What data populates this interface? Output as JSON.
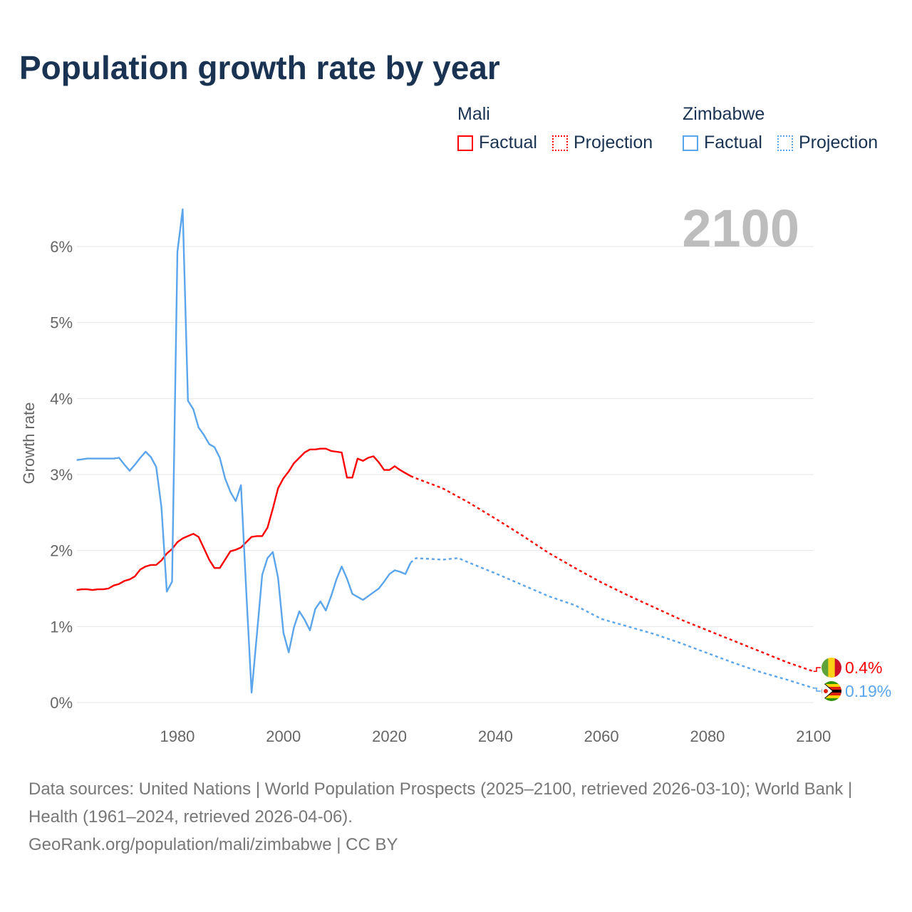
{
  "title": "Population growth rate by year",
  "legend": {
    "groups": [
      {
        "name": "Mali",
        "factual": "Factual",
        "projection": "Projection",
        "color": "#ff0000"
      },
      {
        "name": "Zimbabwe",
        "factual": "Factual",
        "projection": "Projection",
        "color": "#5aa5ec"
      }
    ]
  },
  "current_year": "2100",
  "source": {
    "line1": "Data sources: United Nations | World Population Prospects (2025–2100, retrieved 2026-03-10); World Bank | Health (1961–2024, retrieved 2026-04-06).",
    "line2": "GeoRank.org/population/mali/zimbabwe | CC BY"
  },
  "chart_data": {
    "type": "line",
    "title": "Population growth rate by year",
    "xlabel": "",
    "ylabel": "Growth rate",
    "xlim": [
      1961,
      2100
    ],
    "ylim": [
      0,
      6.6
    ],
    "x_ticks": [
      1980,
      2000,
      2020,
      2040,
      2060,
      2080,
      2100
    ],
    "y_ticks": [
      0,
      1,
      2,
      3,
      4,
      5,
      6
    ],
    "y_tick_labels": [
      "0%",
      "1%",
      "2%",
      "3%",
      "4%",
      "5%",
      "6%"
    ],
    "x_tick_labels": [
      "1980",
      "2000",
      "2020",
      "2040",
      "2060",
      "2080",
      "2100"
    ],
    "grid": true,
    "legend_position": "top-right",
    "series": [
      {
        "name": "Mali",
        "color": "#ff0000",
        "end_label": "0.4%",
        "factual_start": 1961,
        "factual": [
          1.48,
          1.49,
          1.49,
          1.48,
          1.49,
          1.49,
          1.5,
          1.54,
          1.56,
          1.6,
          1.62,
          1.66,
          1.75,
          1.79,
          1.81,
          1.81,
          1.87,
          1.96,
          2.02,
          2.11,
          2.16,
          2.19,
          2.22,
          2.18,
          2.03,
          1.88,
          1.77,
          1.77,
          1.88,
          1.99,
          2.01,
          2.04,
          2.11,
          2.18,
          2.19,
          2.19,
          2.3,
          2.55,
          2.82,
          2.95,
          3.04,
          3.15,
          3.22,
          3.29,
          3.33,
          3.33,
          3.34,
          3.34,
          3.31,
          3.3,
          3.29,
          2.96,
          2.96,
          3.21,
          3.18,
          3.22,
          3.24,
          3.16,
          3.06,
          3.06,
          3.11,
          3.06,
          3.02,
          2.98
        ],
        "projection": [
          [
            2024,
            2.98
          ],
          [
            2025,
            2.95
          ],
          [
            2030,
            2.82
          ],
          [
            2035,
            2.63
          ],
          [
            2040,
            2.42
          ],
          [
            2045,
            2.2
          ],
          [
            2050,
            1.97
          ],
          [
            2055,
            1.77
          ],
          [
            2060,
            1.58
          ],
          [
            2065,
            1.41
          ],
          [
            2070,
            1.25
          ],
          [
            2075,
            1.09
          ],
          [
            2080,
            0.95
          ],
          [
            2085,
            0.81
          ],
          [
            2090,
            0.67
          ],
          [
            2095,
            0.53
          ],
          [
            2100,
            0.41
          ]
        ]
      },
      {
        "name": "Zimbabwe",
        "color": "#5aa5ec",
        "end_label": "0.19%",
        "factual_start": 1961,
        "factual": [
          3.19,
          3.2,
          3.21,
          3.21,
          3.21,
          3.21,
          3.21,
          3.21,
          3.22,
          3.13,
          3.05,
          3.13,
          3.22,
          3.3,
          3.23,
          3.1,
          2.57,
          1.46,
          1.59,
          5.93,
          6.49,
          3.97,
          3.86,
          3.62,
          3.52,
          3.4,
          3.36,
          3.22,
          2.95,
          2.77,
          2.65,
          2.86,
          1.45,
          0.13,
          0.9,
          1.68,
          1.9,
          1.98,
          1.64,
          0.92,
          0.66,
          0.99,
          1.2,
          1.09,
          0.95,
          1.23,
          1.33,
          1.21,
          1.4,
          1.62,
          1.79,
          1.63,
          1.43,
          1.39,
          1.35,
          1.4,
          1.45,
          1.5,
          1.59,
          1.69,
          1.74,
          1.72,
          1.69,
          1.84
        ],
        "projection": [
          [
            2024,
            1.84
          ],
          [
            2025,
            1.9
          ],
          [
            2030,
            1.88
          ],
          [
            2033,
            1.9
          ],
          [
            2035,
            1.84
          ],
          [
            2040,
            1.7
          ],
          [
            2045,
            1.55
          ],
          [
            2050,
            1.4
          ],
          [
            2055,
            1.28
          ],
          [
            2060,
            1.1
          ],
          [
            2065,
            1.0
          ],
          [
            2070,
            0.9
          ],
          [
            2075,
            0.78
          ],
          [
            2080,
            0.65
          ],
          [
            2085,
            0.52
          ],
          [
            2090,
            0.4
          ],
          [
            2095,
            0.3
          ],
          [
            2100,
            0.19
          ]
        ]
      }
    ]
  }
}
